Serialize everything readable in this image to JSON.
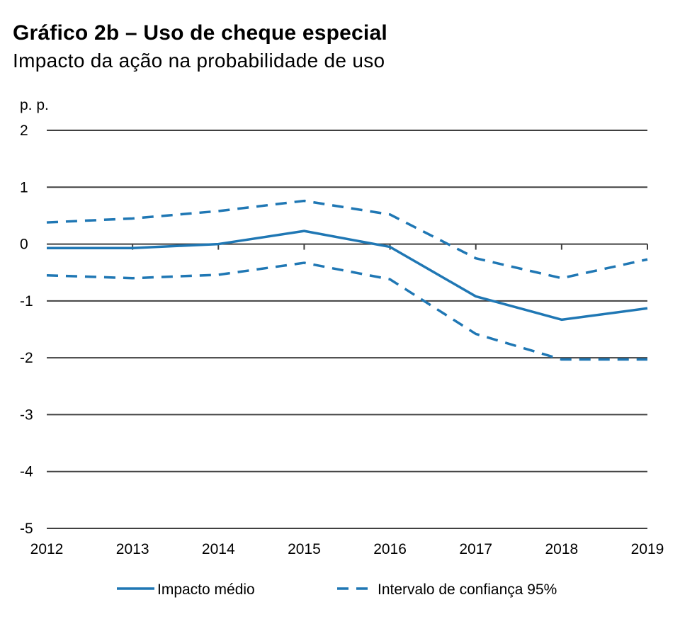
{
  "chart_data": {
    "type": "line",
    "title": "Gráfico 2b – Uso de cheque especial",
    "subtitle": "Impacto da ação na probabilidade de uso",
    "ylabel": "p. p.",
    "ylim": [
      -5,
      2
    ],
    "yticks": [
      "2",
      "1",
      "0",
      "-1",
      "-2",
      "-3",
      "-4",
      "-5"
    ],
    "ytick_values": [
      2,
      1,
      0,
      -1,
      -2,
      -3,
      -4,
      -5
    ],
    "x": [
      "2012",
      "2013",
      "2014",
      "2015",
      "2016",
      "2017",
      "2018",
      "2019"
    ],
    "grid": true,
    "legend_position": "bottom",
    "colors": {
      "line": "#1F77B4",
      "grid": "#404040"
    },
    "series": [
      {
        "name": "Impacto médio",
        "style": "solid",
        "values": [
          -0.07,
          -0.07,
          0.0,
          0.23,
          -0.05,
          -0.92,
          -1.33,
          -1.13
        ]
      },
      {
        "name": "Intervalo de confiança 95%",
        "style": "dashed",
        "values": [
          0.38,
          0.45,
          0.58,
          0.76,
          0.52,
          -0.25,
          -0.6,
          -0.27
        ]
      },
      {
        "name": "",
        "style": "dashed",
        "values": [
          -0.55,
          -0.6,
          -0.54,
          -0.33,
          -0.62,
          -1.58,
          -2.03,
          -2.03
        ]
      }
    ]
  }
}
